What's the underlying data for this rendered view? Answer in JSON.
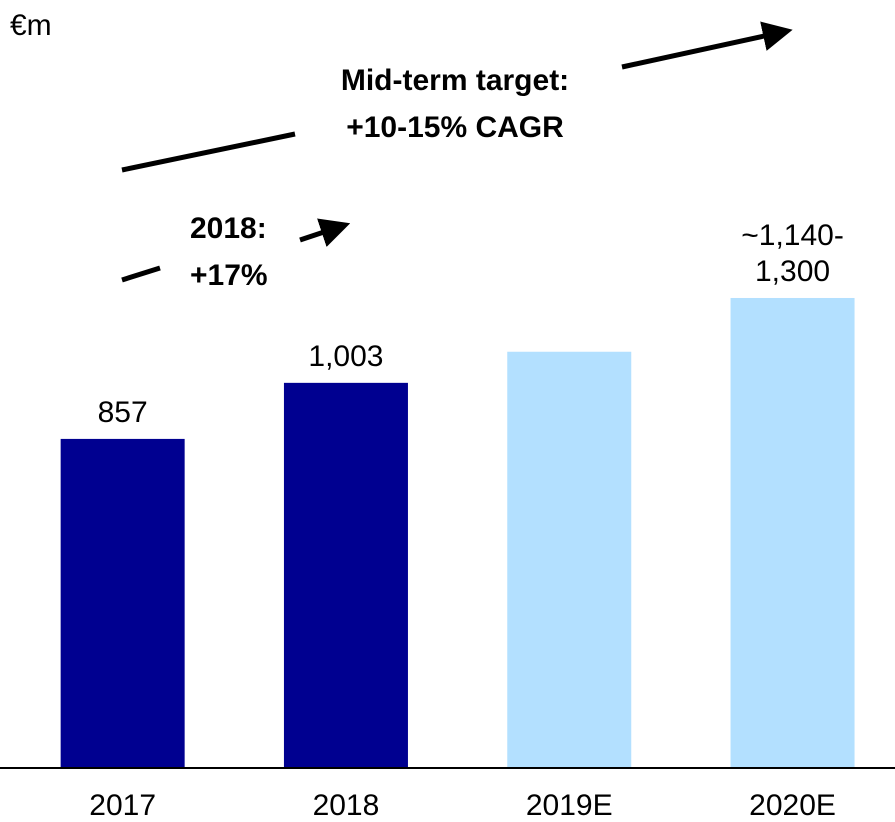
{
  "chart_data": {
    "type": "bar",
    "unit": "€m",
    "annotations": [
      "Mid-term target:",
      "+10-15% CAGR",
      "2018:",
      "+17%"
    ],
    "categories": [
      "2017",
      "2018",
      "2019E",
      "2020E"
    ],
    "values": [
      857,
      1003,
      1084,
      1224
    ],
    "value_labels": [
      "857",
      "1,003",
      null,
      "~1,140-1,300"
    ],
    "colors": [
      "#000090",
      "#000090",
      "#b3e0ff",
      "#b3e0ff"
    ],
    "ylim": [
      0,
      2000
    ]
  }
}
